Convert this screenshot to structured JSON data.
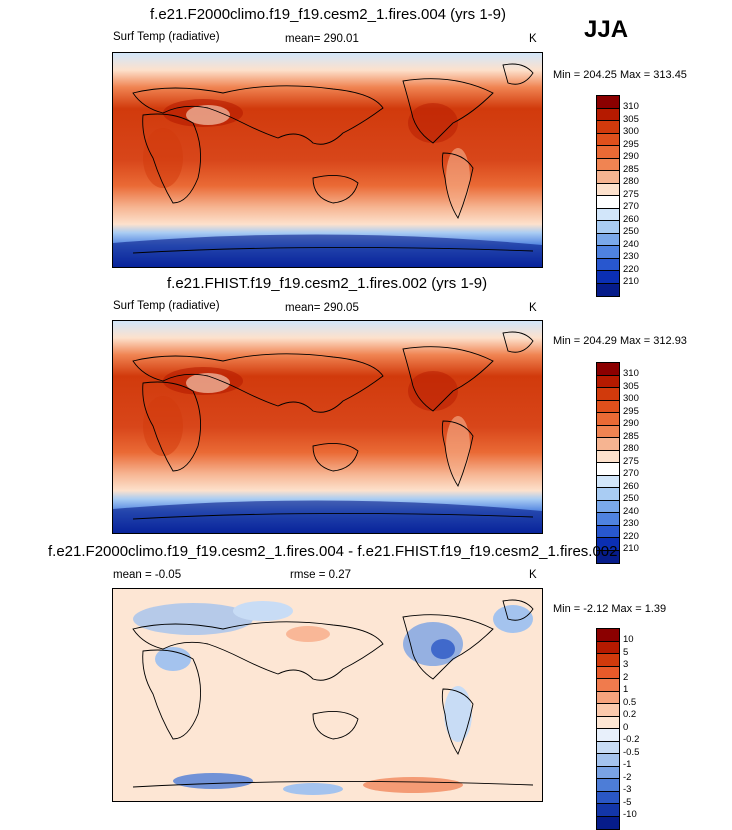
{
  "season": "JJA",
  "panels": [
    {
      "title": "f.e21.F2000climo.f19_f19.cesm2_1.fires.004 (yrs 1-9)",
      "variable": "Surf Temp (radiative)",
      "mean": "mean= 290.01",
      "units": "K",
      "minmax": "Min = 204.25 Max = 313.45",
      "colorbar": {
        "levels": [
          "310",
          "305",
          "300",
          "295",
          "290",
          "285",
          "280",
          "275",
          "270",
          "260",
          "250",
          "240",
          "230",
          "220",
          "210"
        ],
        "colors": [
          "#8b0000",
          "#b51a00",
          "#d13a0c",
          "#e0501c",
          "#ea6a35",
          "#f08452",
          "#f6b491",
          "#fde1cc",
          "#ffffff",
          "#d2e6fa",
          "#a9ccf3",
          "#7aa8ea",
          "#4f82e0",
          "#2857cf",
          "#0b2fb3",
          "#061c8a"
        ]
      }
    },
    {
      "title": "f.e21.FHIST.f19_f19.cesm2_1.fires.002 (yrs 1-9)",
      "variable": "Surf Temp (radiative)",
      "mean": "mean= 290.05",
      "units": "K",
      "minmax": "Min = 204.29 Max = 312.93",
      "colorbar": {
        "levels": [
          "310",
          "305",
          "300",
          "295",
          "290",
          "285",
          "280",
          "275",
          "270",
          "260",
          "250",
          "240",
          "230",
          "220",
          "210"
        ],
        "colors": [
          "#8b0000",
          "#b51a00",
          "#d13a0c",
          "#e0501c",
          "#ea6a35",
          "#f08452",
          "#f6b491",
          "#fde1cc",
          "#ffffff",
          "#d2e6fa",
          "#a9ccf3",
          "#7aa8ea",
          "#4f82e0",
          "#2857cf",
          "#0b2fb3",
          "#061c8a"
        ]
      }
    },
    {
      "title": "f.e21.F2000climo.f19_f19.cesm2_1.fires.004 - f.e21.FHIST.f19_f19.cesm2_1.fires.002",
      "mean": "mean =  -0.05",
      "rmse": "rmse =   0.27",
      "units": "K",
      "minmax": "Min =  -2.12 Max =   1.39",
      "colorbar": {
        "levels": [
          "10",
          "5",
          "3",
          "2",
          "1",
          "0.5",
          "0.2",
          "0",
          "-0.2",
          "-0.5",
          "-1",
          "-2",
          "-3",
          "-5",
          "-10"
        ],
        "colors": [
          "#8b0000",
          "#b51a00",
          "#d13a0c",
          "#e85a2a",
          "#f07b4d",
          "#f6a37d",
          "#fbc9ac",
          "#fde6d4",
          "#e8f0fb",
          "#c8dcf5",
          "#a4c3ee",
          "#7aa3e4",
          "#4d7dd7",
          "#2a57c5",
          "#1336a8",
          "#061c8a"
        ]
      }
    }
  ]
}
